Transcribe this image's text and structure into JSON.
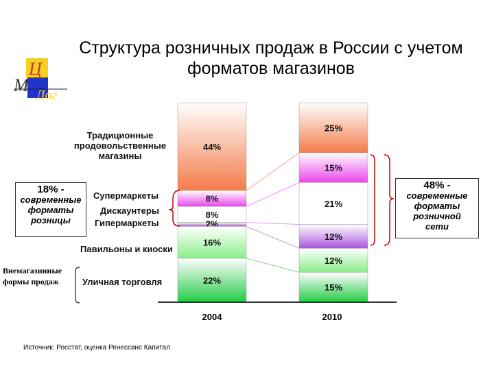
{
  "title_line1": "Структура розничных продаж в России с учетом",
  "title_line2": "форматов магазинов",
  "logo": {
    "letter_top": "Ц",
    "letter_left": "М",
    "letter_bottom": "Лог"
  },
  "labels": {
    "traditional": [
      "Традиционные",
      "продовольственные",
      "магазины"
    ],
    "supermarkets": "Супермаркеты",
    "discounters": "Дискаунтеры",
    "hypermarkets": "Гипермаркеты",
    "pavilions": "Павильоны и киоски",
    "street": "Уличная торговля",
    "non_store": [
      "Внемагазинные",
      "формы продаж"
    ]
  },
  "box_left": {
    "pct": "18% -",
    "lines": [
      "современные",
      "форматы",
      "розницы"
    ]
  },
  "box_right": {
    "pct": "48% -",
    "lines": [
      "современные",
      "форматы",
      "розничной",
      "сети"
    ]
  },
  "source": "Источник: Росстат, оценка Ренессанс Капитал",
  "colors": {
    "traditional": "#f47c4a",
    "supermarkets": "#ee44ee",
    "discounters": "#ffffff",
    "hypermarkets": "#aa55dd",
    "pavilions": "#88ee88",
    "street": "#22cc44"
  },
  "chart_data": {
    "type": "bar",
    "stacked": true,
    "categories": [
      "2004",
      "2010"
    ],
    "series": [
      {
        "name": "Традиционные продовольственные магазины",
        "values": [
          44,
          25
        ]
      },
      {
        "name": "Супермаркеты",
        "values": [
          8,
          15
        ]
      },
      {
        "name": "Дискаунтеры",
        "values": [
          8,
          21
        ]
      },
      {
        "name": "Гипермаркеты",
        "values": [
          2,
          12
        ]
      },
      {
        "name": "Павильоны и киоски",
        "values": [
          16,
          12
        ]
      },
      {
        "name": "Уличная торговля",
        "values": [
          22,
          15
        ]
      }
    ],
    "value_labels": [
      [
        "44%",
        "8%",
        "8%",
        "2%",
        "16%",
        "22%"
      ],
      [
        "25%",
        "15%",
        "21%",
        "12%",
        "12%",
        "15%"
      ]
    ],
    "ylim": [
      0,
      100
    ],
    "legend": "none"
  }
}
